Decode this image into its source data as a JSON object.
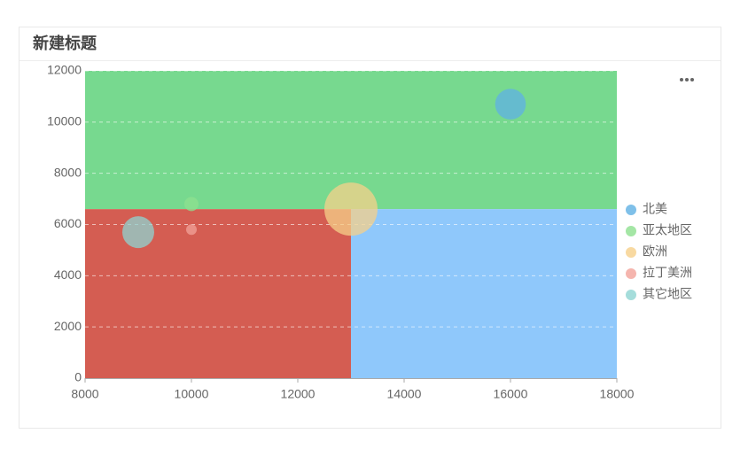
{
  "chart_data": {
    "type": "bubble",
    "title": "新建标题",
    "xlim": [
      8000,
      18000
    ],
    "xticks": [
      8000,
      10000,
      12000,
      14000,
      16000,
      18000
    ],
    "ylim": [
      0,
      12000
    ],
    "yticks": [
      0,
      2000,
      4000,
      6000,
      8000,
      10000,
      12000
    ],
    "grid": true,
    "legend": "right",
    "quadrants": {
      "x": 13000,
      "y": 6600,
      "colors": {
        "top": "#77d98f",
        "bottom_left": "#d45d52",
        "bottom_right": "#8fc8fb"
      }
    },
    "series": [
      {
        "name": "北美",
        "color": "#5fb0e4",
        "x": [
          16000
        ],
        "values": [
          10700
        ],
        "sizes": [
          300
        ]
      },
      {
        "name": "亚太地区",
        "color": "#8de08f",
        "x": [
          10000
        ],
        "values": [
          6800
        ],
        "sizes": [
          64
        ]
      },
      {
        "name": "欧洲",
        "color": "#f6d08a",
        "x": [
          13000
        ],
        "values": [
          6600
        ],
        "sizes": [
          900
        ]
      },
      {
        "name": "拉丁美洲",
        "color": "#f2a39a",
        "x": [
          10000
        ],
        "values": [
          5800
        ],
        "sizes": [
          36
        ]
      },
      {
        "name": "其它地区",
        "color": "#8fd4d2",
        "x": [
          9000
        ],
        "values": [
          5700
        ],
        "sizes": [
          324
        ]
      }
    ]
  }
}
